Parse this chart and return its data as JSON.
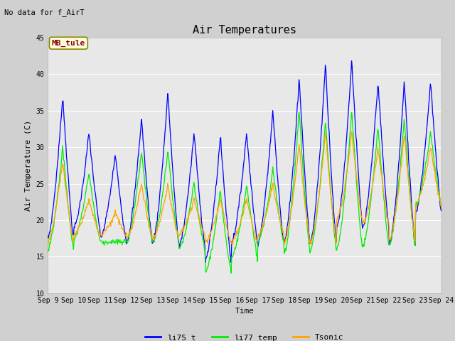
{
  "title": "Air Temperatures",
  "xlabel": "Time",
  "ylabel": "Air Temperature (C)",
  "ylim": [
    10,
    45
  ],
  "background_color": "#d0d0d0",
  "plot_bg_color": "#e8e8e8",
  "legend_labels": [
    "li75_t",
    "li77_temp",
    "Tsonic"
  ],
  "no_data_text": "No data for f_AirT",
  "legend_box_label": "MB_tule",
  "xtick_labels": [
    "Sep 9",
    "Sep 10",
    "Sep 11",
    "Sep 12",
    "Sep 13",
    "Sep 14",
    "Sep 15",
    "Sep 16",
    "Sep 17",
    "Sep 18",
    "Sep 19",
    "Sep 20",
    "Sep 21",
    "Sep 22",
    "Sep 23",
    "Sep 24"
  ],
  "ytick_values": [
    10,
    15,
    20,
    25,
    30,
    35,
    40,
    45
  ],
  "title_fontsize": 11,
  "axis_label_fontsize": 8,
  "tick_fontsize": 7,
  "legend_fontsize": 8,
  "n_days": 15,
  "maxes_blue": [
    37.0,
    32.0,
    29.0,
    34.0,
    37.5,
    32.0,
    31.5,
    32.0,
    35.0,
    39.5,
    41.5,
    42.0,
    39.0,
    39.0,
    39.0
  ],
  "mins_blue": [
    17.5,
    19.0,
    17.5,
    17.0,
    17.0,
    16.5,
    14.5,
    17.0,
    17.0,
    17.0,
    17.0,
    19.0,
    19.0,
    16.5,
    21.0
  ],
  "maxes_green": [
    30.0,
    26.5,
    17.0,
    29.5,
    29.5,
    25.0,
    24.0,
    25.0,
    27.0,
    35.0,
    33.5,
    35.0,
    33.0,
    34.0,
    32.0
  ],
  "mins_green": [
    16.0,
    17.5,
    17.0,
    17.0,
    17.0,
    16.0,
    13.0,
    15.0,
    17.0,
    15.5,
    16.0,
    16.0,
    16.5,
    16.5,
    22.0
  ],
  "maxes_orange": [
    28.0,
    23.0,
    21.0,
    25.0,
    25.0,
    23.0,
    23.0,
    23.0,
    25.0,
    30.5,
    32.0,
    32.0,
    30.0,
    32.0,
    30.0
  ],
  "mins_orange": [
    17.0,
    18.0,
    18.0,
    17.5,
    17.5,
    18.0,
    17.0,
    17.0,
    18.0,
    17.0,
    17.0,
    20.0,
    19.5,
    17.0,
    22.0
  ]
}
